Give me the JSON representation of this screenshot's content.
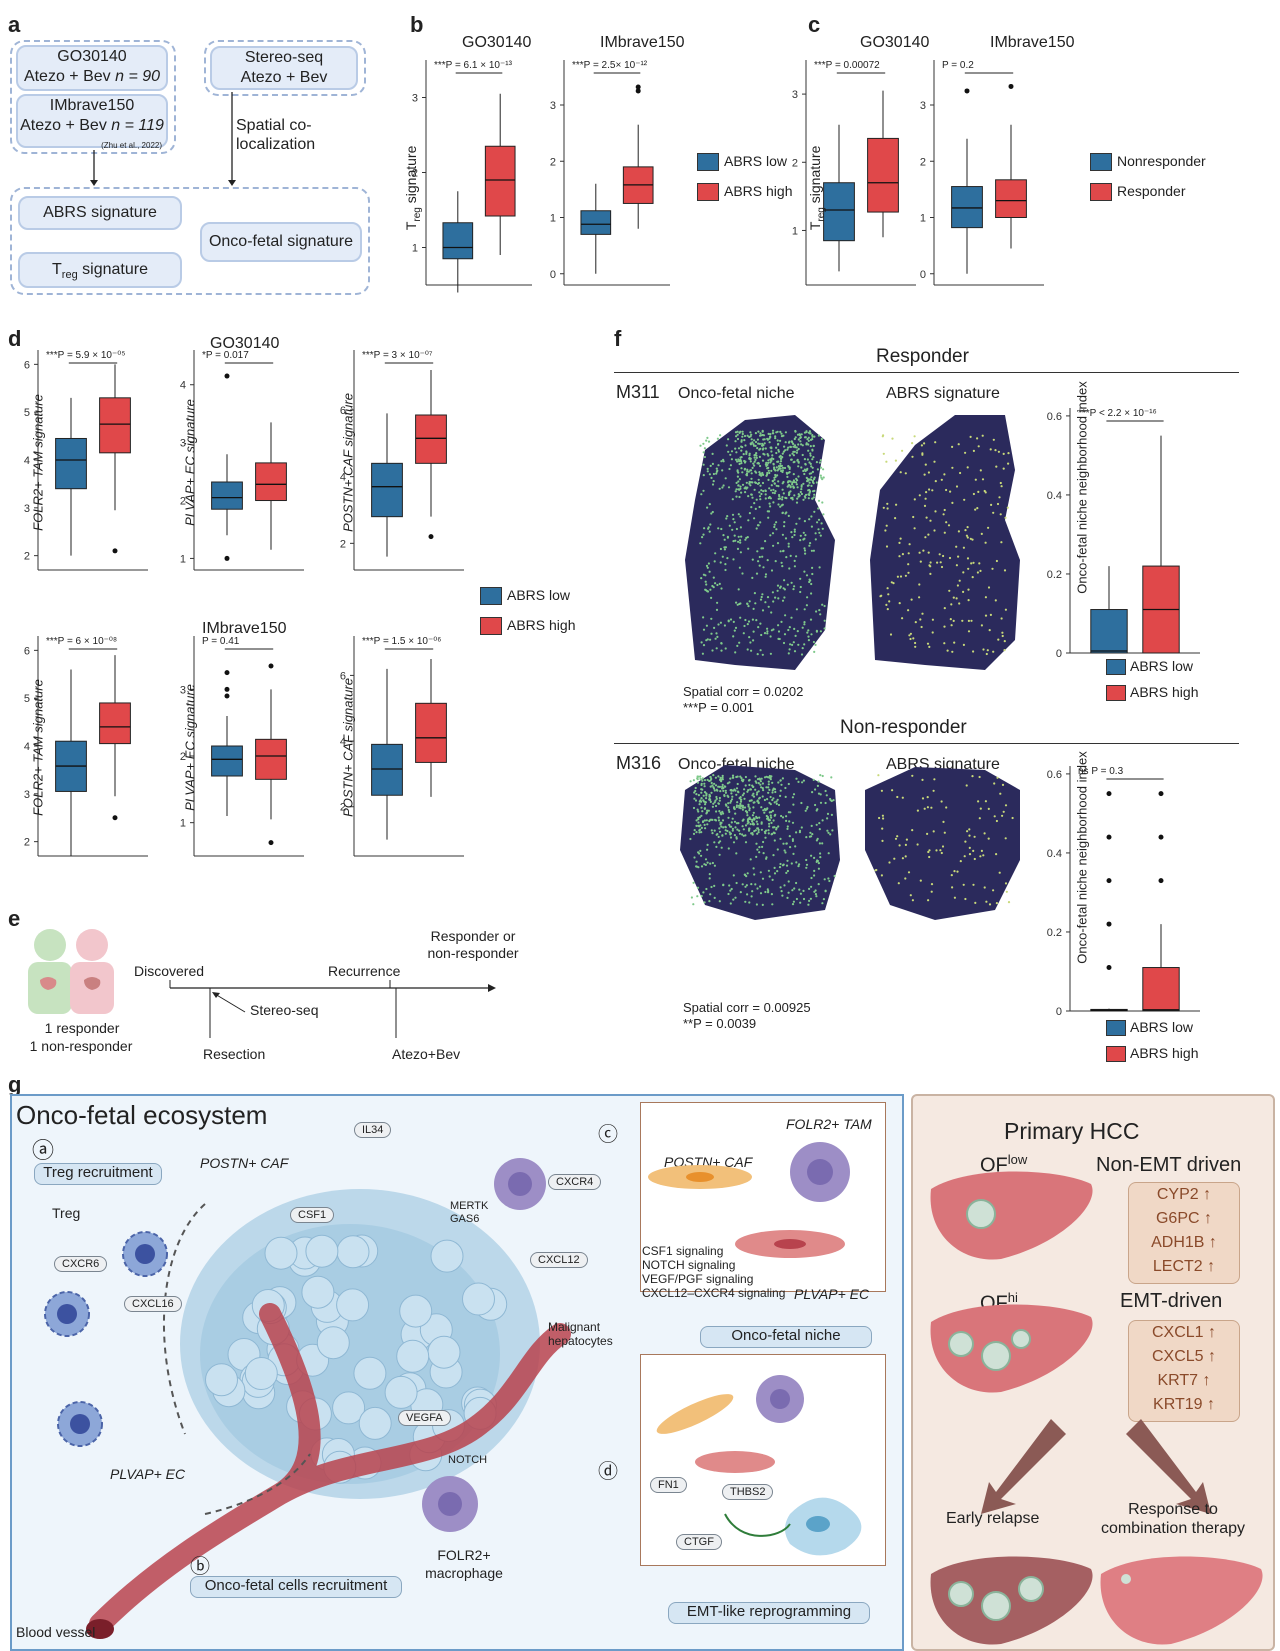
{
  "panels": {
    "a": "a",
    "b": "b",
    "c": "c",
    "d": "d",
    "e": "e",
    "f": "f",
    "g": "g"
  },
  "colors": {
    "low": "#2e6f9e",
    "high": "#e0484a",
    "niche_bg": "#2b2a5c",
    "accent_blue": "#9fb4d6"
  },
  "panel_a": {
    "go_title": "GO30140",
    "go_sub": "Atezo + Bev",
    "go_n": "n = 90",
    "im_title": "IMbrave150",
    "im_sub": "Atezo + Bev",
    "im_n": "n = 119",
    "im_cite": "(Zhu et al., 2022)",
    "st_title": "Stereo-seq",
    "st_sub": "Atezo + Bev",
    "spatial": "Spatial co-localization",
    "abrs": "ABRS signature",
    "treg": "T",
    "treg_sub": "reg",
    "treg_rest": " signature",
    "oncofetal": "Onco-fetal signature"
  },
  "panel_b": {
    "ylabel": "T",
    "ylabel_sub": "reg",
    "ylabel_rest": " signature",
    "legend": [
      "ABRS low",
      "ABRS high"
    ]
  },
  "panel_c": {
    "legend": [
      "Nonresponder",
      "Responder"
    ]
  },
  "panel_d": {
    "legend": [
      "ABRS low",
      "ABRS high"
    ],
    "row_titles": [
      "GO30140",
      "IMbrave150"
    ]
  },
  "panel_e": {
    "discovered": "Discovered",
    "resection": "Resection",
    "stereo": "Stereo-seq",
    "recurrence": "Recurrence",
    "atezo": "Atezo+Bev",
    "response": "Responder or non-responder",
    "patients1": "1 responder",
    "patients2": "1 non-responder"
  },
  "panel_f": {
    "responder": "Responder",
    "nonresponder": "Non-responder",
    "m311": "M311",
    "m316": "M316",
    "niche": "Onco-fetal niche",
    "abrs": "ABRS signature",
    "corr1": "Spatial corr = 0.0202",
    "p1": "***P = 0.001",
    "corr2": "Spatial corr = 0.00925",
    "p2": "**P = 0.0039",
    "ylabel": "Onco-fetal niche neighborhood index",
    "legend": [
      "ABRS low",
      "ABRS high"
    ]
  },
  "panel_g": {
    "title": "Onco-fetal ecosystem",
    "a_mark": "ⓐ",
    "b_mark": "ⓑ",
    "c_mark": "ⓒ",
    "d_mark": "ⓓ",
    "treg_recruit": "Treg recruitment",
    "treg": "Treg",
    "postn": "POSTN+ CAF",
    "il34": "IL34",
    "csf1": "CSF1",
    "mertk": "MERTK GAS6",
    "cxcr4": "CXCR4",
    "cxcl12": "CXCL12",
    "cxcr6": "CXCR6",
    "cxcl16": "CXCL16",
    "malignant": "Malignant hepatocytes",
    "vegfa": "VEGFA",
    "notch": "NOTCH",
    "plvap": "PLVAP+ EC",
    "folr2": "FOLR2+ macrophage",
    "blood": "Blood vessel",
    "onco_recruit": "Onco-fetal cells recruitment",
    "niche_title": "Onco-fetal niche",
    "emt": "EMT-like reprogramming",
    "inset_postn": "POSTN+ CAF",
    "inset_folr2": "FOLR2+ TAM",
    "inset_plvap": "PLVAP+ EC",
    "signaling": [
      "CSF1 signaling",
      "NOTCH signaling",
      "VEGF/PGF signaling",
      "CXCL12–CXCR4 signaling"
    ],
    "fn1": "FN1",
    "thbs2": "THBS2",
    "ctgf": "CTGF"
  },
  "right_panel": {
    "title": "Primary HCC",
    "oflow": "OF",
    "oflow_sup": "low",
    "ofhi": "OF",
    "ofhi_sup": "hi",
    "nonemt": "Non-EMT driven",
    "emt": "EMT-driven",
    "nonemt_genes": [
      "CYP2 ↑",
      "G6PC ↑",
      "ADH1B ↑",
      "LECT2 ↑"
    ],
    "emt_genes": [
      "CXCL1 ↑",
      "CXCL5 ↑",
      "KRT7 ↑",
      "KRT19 ↑"
    ],
    "early": "Early relapse",
    "response": "Response to combination therapy"
  },
  "chart_data": [
    {
      "id": "b1",
      "type": "box",
      "title": "GO30140",
      "categories": [
        "ABRS low",
        "ABRS high"
      ],
      "ylim": [
        0.5,
        3.5
      ],
      "yticks": [
        1,
        2,
        3
      ],
      "annotation": "***P = 6.1 × 10⁻¹³",
      "boxes": [
        {
          "min": 0.4,
          "q1": 0.85,
          "median": 1.0,
          "q3": 1.33,
          "max": 1.75,
          "outliers": []
        },
        {
          "min": 0.9,
          "q1": 1.42,
          "median": 1.9,
          "q3": 2.35,
          "max": 3.05,
          "outliers": []
        }
      ]
    },
    {
      "id": "b2",
      "type": "box",
      "title": "IMbrave150",
      "categories": [
        "ABRS low",
        "ABRS high"
      ],
      "ylim": [
        -0.2,
        3.8
      ],
      "yticks": [
        0,
        1,
        2,
        3
      ],
      "annotation": "***P = 2.5× 10⁻¹²",
      "boxes": [
        {
          "min": 0.0,
          "q1": 0.7,
          "median": 0.88,
          "q3": 1.12,
          "max": 1.6,
          "outliers": []
        },
        {
          "min": 0.8,
          "q1": 1.25,
          "median": 1.58,
          "q3": 1.9,
          "max": 2.65,
          "outliers": [
            3.25,
            3.32
          ]
        }
      ]
    },
    {
      "id": "c1",
      "type": "box",
      "title": "GO30140",
      "categories": [
        "Nonresponder",
        "Responder"
      ],
      "ylim": [
        0.2,
        3.5
      ],
      "yticks": [
        1,
        2,
        3
      ],
      "annotation": "***P = 0.00072",
      "boxes": [
        {
          "min": 0.4,
          "q1": 0.85,
          "median": 1.3,
          "q3": 1.7,
          "max": 2.55,
          "outliers": []
        },
        {
          "min": 0.9,
          "q1": 1.27,
          "median": 1.7,
          "q3": 2.35,
          "max": 3.05,
          "outliers": []
        }
      ]
    },
    {
      "id": "c2",
      "type": "box",
      "title": "IMbrave150",
      "categories": [
        "Nonresponder",
        "Responder"
      ],
      "ylim": [
        -0.2,
        3.8
      ],
      "yticks": [
        0,
        1,
        2,
        3
      ],
      "annotation": "P = 0.2",
      "boxes": [
        {
          "min": 0.0,
          "q1": 0.82,
          "median": 1.17,
          "q3": 1.55,
          "max": 2.4,
          "outliers": [
            3.25
          ]
        },
        {
          "min": 0.45,
          "q1": 1.0,
          "median": 1.3,
          "q3": 1.67,
          "max": 2.65,
          "outliers": [
            3.33
          ]
        }
      ]
    },
    {
      "id": "d1",
      "type": "box",
      "ylabel": "FOLR2+ TAM signature",
      "categories": [
        "ABRS low",
        "ABRS high"
      ],
      "ylim": [
        1.7,
        6.3
      ],
      "yticks": [
        2,
        3,
        4,
        5,
        6
      ],
      "annotation": "***P = 5.9 × 10⁻⁰⁵",
      "boxes": [
        {
          "min": 2.0,
          "q1": 3.4,
          "median": 4.0,
          "q3": 4.45,
          "max": 5.3,
          "outliers": []
        },
        {
          "min": 2.95,
          "q1": 4.15,
          "median": 4.75,
          "q3": 5.3,
          "max": 6.0,
          "outliers": [
            2.1
          ]
        }
      ]
    },
    {
      "id": "d2",
      "type": "box",
      "ylabel": "PLVAP+ EC signature",
      "categories": [
        "ABRS low",
        "ABRS high"
      ],
      "ylim": [
        0.8,
        4.6
      ],
      "yticks": [
        1,
        2,
        3,
        4
      ],
      "annotation": "*P = 0.017",
      "boxes": [
        {
          "min": 1.4,
          "q1": 1.85,
          "median": 2.05,
          "q3": 2.32,
          "max": 2.8,
          "outliers": [
            1.0,
            4.15
          ]
        },
        {
          "min": 1.15,
          "q1": 2.0,
          "median": 2.28,
          "q3": 2.65,
          "max": 3.35,
          "outliers": []
        }
      ]
    },
    {
      "id": "d3",
      "type": "box",
      "ylabel": "POSTN+ CAF signature",
      "categories": [
        "ABRS low",
        "ABRS high"
      ],
      "ylim": [
        1.2,
        7.8
      ],
      "yticks": [
        2,
        4,
        6
      ],
      "annotation": "***P = 3 × 10⁻⁰⁷",
      "boxes": [
        {
          "min": 1.6,
          "q1": 2.8,
          "median": 3.7,
          "q3": 4.4,
          "max": 5.9,
          "outliers": []
        },
        {
          "min": 2.8,
          "q1": 4.4,
          "median": 5.15,
          "q3": 5.85,
          "max": 7.2,
          "outliers": [
            2.2
          ]
        }
      ]
    },
    {
      "id": "d4",
      "type": "box",
      "ylabel": "FOLR2+ TAM signature",
      "categories": [
        "ABRS low",
        "ABRS high"
      ],
      "ylim": [
        1.7,
        6.3
      ],
      "yticks": [
        2,
        3,
        4,
        5,
        6
      ],
      "annotation": "***P = 6 × 10⁻⁰⁸",
      "boxes": [
        {
          "min": 1.7,
          "q1": 3.05,
          "median": 3.58,
          "q3": 4.1,
          "max": 5.6,
          "outliers": []
        },
        {
          "min": 2.95,
          "q1": 4.05,
          "median": 4.4,
          "q3": 4.9,
          "max": 5.9,
          "outliers": [
            2.5
          ]
        }
      ]
    },
    {
      "id": "d5",
      "type": "box",
      "ylabel": "PLVAP+ EC signature",
      "categories": [
        "ABRS low",
        "ABRS high"
      ],
      "ylim": [
        0.5,
        3.8
      ],
      "yticks": [
        1,
        2,
        3
      ],
      "annotation": "P = 0.41",
      "boxes": [
        {
          "min": 1.1,
          "q1": 1.7,
          "median": 1.95,
          "q3": 2.15,
          "max": 2.6,
          "outliers": [
            2.9,
            3.0,
            3.25
          ]
        },
        {
          "min": 1.05,
          "q1": 1.65,
          "median": 2.0,
          "q3": 2.25,
          "max": 3.0,
          "outliers": [
            0.7,
            3.35
          ]
        }
      ]
    },
    {
      "id": "d6",
      "type": "box",
      "ylabel": "POSTN+ CAF signature",
      "categories": [
        "ABRS low",
        "ABRS high"
      ],
      "ylim": [
        0.5,
        7.2
      ],
      "yticks": [
        2,
        4,
        6
      ],
      "annotation": "***P = 1.5 × 10⁻⁰⁶",
      "boxes": [
        {
          "min": 1.0,
          "q1": 2.35,
          "median": 3.15,
          "q3": 3.9,
          "max": 6.2,
          "outliers": []
        },
        {
          "min": 2.3,
          "q1": 3.35,
          "median": 4.1,
          "q3": 5.15,
          "max": 6.5,
          "outliers": []
        }
      ]
    },
    {
      "id": "f1",
      "type": "box",
      "categories": [
        "ABRS low",
        "ABRS high"
      ],
      "ylim": [
        0,
        0.62
      ],
      "yticks": [
        0,
        0.2,
        0.4,
        0.6
      ],
      "annotation": "***P < 2.2 × 10⁻¹⁶",
      "boxes": [
        {
          "min": 0,
          "q1": 0,
          "median": 0.005,
          "q3": 0.11,
          "max": 0.22,
          "outliers": []
        },
        {
          "min": 0,
          "q1": 0,
          "median": 0.11,
          "q3": 0.22,
          "max": 0.55,
          "outliers": []
        }
      ]
    },
    {
      "id": "f2",
      "type": "box",
      "categories": [
        "ABRS low",
        "ABRS high"
      ],
      "ylim": [
        0,
        0.62
      ],
      "yticks": [
        0,
        0.2,
        0.4,
        0.6
      ],
      "annotation": "ns P = 0.3",
      "boxes": [
        {
          "min": 0,
          "q1": 0,
          "median": 0.002,
          "q3": 0.004,
          "max": 0.006,
          "outliers": [
            0.11,
            0.22,
            0.33,
            0.44,
            0.55
          ]
        },
        {
          "min": 0,
          "q1": 0,
          "median": 0.003,
          "q3": 0.11,
          "max": 0.22,
          "outliers": [
            0.33,
            0.44,
            0.55
          ]
        }
      ]
    }
  ]
}
